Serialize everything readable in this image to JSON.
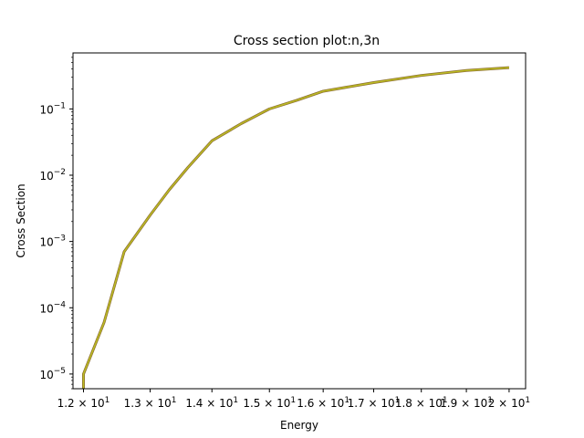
{
  "chart_data": {
    "type": "line",
    "title": "Cross section plot:n,3n",
    "xlabel": "Energy",
    "ylabel": "Cross Section",
    "xscale": "log",
    "yscale": "log",
    "xlim": [
      11.85,
      20.4
    ],
    "ylim": [
      6e-06,
      0.7
    ],
    "grid": false,
    "legend": "none",
    "x_ticks": [
      {
        "value": 12,
        "mantissa": "1.2",
        "base": "10",
        "exp": "1"
      },
      {
        "value": 13,
        "mantissa": "1.3",
        "base": "10",
        "exp": "1"
      },
      {
        "value": 14,
        "mantissa": "1.4",
        "base": "10",
        "exp": "1"
      },
      {
        "value": 15,
        "mantissa": "1.5",
        "base": "10",
        "exp": "1"
      },
      {
        "value": 16,
        "mantissa": "1.6",
        "base": "10",
        "exp": "1"
      },
      {
        "value": 17,
        "mantissa": "1.7",
        "base": "10",
        "exp": "1"
      },
      {
        "value": 18,
        "mantissa": "1.8",
        "base": "10",
        "exp": "1"
      },
      {
        "value": 19,
        "mantissa": "1.9",
        "base": "10",
        "exp": "1"
      },
      {
        "value": 20,
        "mantissa": "2",
        "base": "10",
        "exp": "1"
      }
    ],
    "y_ticks": [
      {
        "value": 1e-05,
        "base": "10",
        "exp": "−5"
      },
      {
        "value": 0.0001,
        "base": "10",
        "exp": "−4"
      },
      {
        "value": 0.001,
        "base": "10",
        "exp": "−3"
      },
      {
        "value": 0.01,
        "base": "10",
        "exp": "−2"
      },
      {
        "value": 0.1,
        "base": "10",
        "exp": "−1"
      }
    ],
    "series": [
      {
        "color": "#8c6d31",
        "x": [
          12.0,
          12.0,
          12.3,
          12.6,
          13.0,
          13.3,
          13.6,
          14.0,
          14.5,
          15.0,
          15.5,
          16.0,
          17.0,
          18.0,
          19.0,
          20.0
        ],
        "y": [
          6e-06,
          1e-05,
          6e-05,
          0.0007,
          0.0025,
          0.006,
          0.013,
          0.033,
          0.06,
          0.1,
          0.135,
          0.185,
          0.25,
          0.32,
          0.38,
          0.42
        ]
      },
      {
        "color": "#bcbd22",
        "x": [
          12.0,
          12.0,
          12.3,
          12.6,
          13.0,
          13.3,
          13.6,
          14.0,
          14.5,
          15.0,
          15.5,
          16.0,
          17.0,
          18.0,
          19.0,
          20.0
        ],
        "y": [
          6e-06,
          1e-05,
          6e-05,
          0.0007,
          0.0025,
          0.006,
          0.013,
          0.033,
          0.06,
          0.1,
          0.135,
          0.185,
          0.25,
          0.32,
          0.38,
          0.42
        ]
      }
    ]
  }
}
